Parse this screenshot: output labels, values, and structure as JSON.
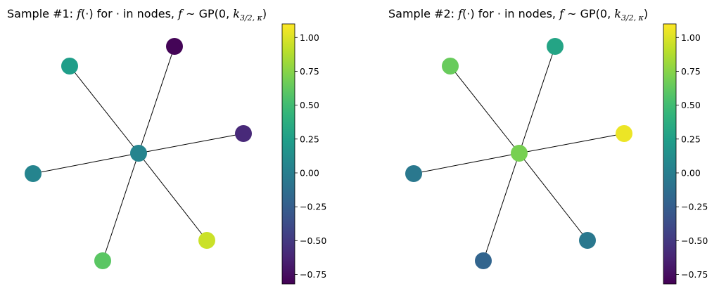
{
  "chart_data": [
    {
      "type": "graph",
      "title": {
        "prefix": "Sample #1: ",
        "func": "f",
        "args": "(·)",
        "middle": " for · in nodes, ",
        "fvar": "f",
        "tail": " ~ GP(0, ",
        "kernel": "k",
        "kernel_sub": "3/2, κ",
        "close": ")"
      },
      "nodes": [
        {
          "id": "center",
          "value": 0.05
        },
        {
          "id": "n1",
          "value": -0.8
        },
        {
          "id": "n2",
          "value": 0.25
        },
        {
          "id": "n3",
          "value": -0.6
        },
        {
          "id": "n4",
          "value": 0.05
        },
        {
          "id": "n5",
          "value": 0.95
        },
        {
          "id": "n6",
          "value": 0.6
        }
      ],
      "edges": [
        [
          "center",
          "n1"
        ],
        [
          "center",
          "n2"
        ],
        [
          "center",
          "n3"
        ],
        [
          "center",
          "n4"
        ],
        [
          "center",
          "n5"
        ],
        [
          "center",
          "n6"
        ]
      ],
      "colorbar": {
        "min": -0.82,
        "max": 1.1,
        "ticks": [
          1.0,
          0.75,
          0.5,
          0.25,
          0.0,
          -0.25,
          -0.5,
          -0.75
        ],
        "tick_labels": [
          "1.00",
          "0.75",
          "0.50",
          "0.25",
          "0.00",
          "−0.25",
          "−0.50",
          "−0.75"
        ]
      }
    },
    {
      "type": "graph",
      "title": {
        "prefix": "Sample #2: ",
        "func": "f",
        "args": "(·)",
        "middle": " for · in nodes, ",
        "fvar": "f",
        "tail": " ~ GP(0, ",
        "kernel": "k",
        "kernel_sub": "3/2, κ",
        "close": ")"
      },
      "nodes": [
        {
          "id": "center",
          "value": 0.7
        },
        {
          "id": "n1",
          "value": 0.3
        },
        {
          "id": "n2",
          "value": 0.65
        },
        {
          "id": "n3",
          "value": 1.05
        },
        {
          "id": "n4",
          "value": -0.05
        },
        {
          "id": "n5",
          "value": -0.05
        },
        {
          "id": "n6",
          "value": -0.2
        }
      ],
      "edges": [
        [
          "center",
          "n1"
        ],
        [
          "center",
          "n2"
        ],
        [
          "center",
          "n3"
        ],
        [
          "center",
          "n4"
        ],
        [
          "center",
          "n5"
        ],
        [
          "center",
          "n6"
        ]
      ],
      "colorbar": {
        "min": -0.82,
        "max": 1.1,
        "ticks": [
          1.0,
          0.75,
          0.5,
          0.25,
          0.0,
          -0.25,
          -0.5,
          -0.75
        ],
        "tick_labels": [
          "1.00",
          "0.75",
          "0.50",
          "0.25",
          "0.00",
          "−0.25",
          "−0.50",
          "−0.75"
        ]
      }
    }
  ]
}
